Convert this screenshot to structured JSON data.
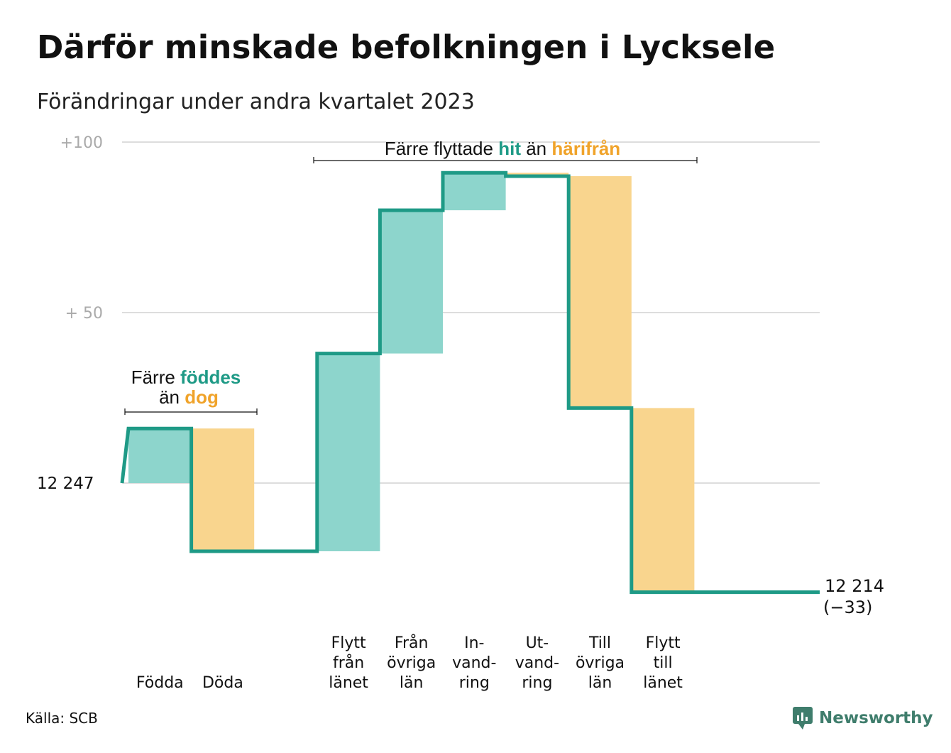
{
  "title": "Därför minskade befolkningen i Lycksele",
  "subtitle": "Förändringar under andra kvartalet 2023",
  "source": "Källa: SCB",
  "brand": "Newsworthy",
  "colors": {
    "in": "#8dd5cc",
    "out": "#f9d58e",
    "line": "#1e9a86",
    "accent_teal": "#1e9a86",
    "accent_orange": "#f0a32a",
    "grid": "#dddddd",
    "axis_text": "#aaaaaa"
  },
  "annotations": {
    "birth": {
      "prefix": "Färre",
      "in_word": "föddes",
      "mid": "än",
      "out_word": "dog"
    },
    "moves": {
      "prefix": "Färre flyttade",
      "in_word": "hit",
      "mid": "än",
      "out_word": "härifrån"
    }
  },
  "chart_data": {
    "type": "waterfall",
    "title": "Därför minskade befolkningen i Lycksele",
    "subtitle": "Förändringar under andra kvartalet 2023",
    "start_value": 12247,
    "end_value": 12214,
    "end_change": -33,
    "y_tick_labels": [
      "+100",
      "+ 50",
      "12  247"
    ],
    "y_ticks": [
      100,
      50,
      0
    ],
    "ylim": [
      -33,
      100
    ],
    "grid": true,
    "start_label": "12  247",
    "end_label": [
      "12 214",
      "(−33)"
    ],
    "steps": [
      {
        "label": [
          "Födda"
        ],
        "change": 16,
        "kind": "in"
      },
      {
        "label": [
          "Döda"
        ],
        "change": -36,
        "kind": "out"
      },
      {
        "label": [],
        "change": 0,
        "kind": "gap"
      },
      {
        "label": [
          "Flytt",
          "från",
          "länet"
        ],
        "change": 58,
        "kind": "in"
      },
      {
        "label": [
          "Från",
          "övriga",
          "län"
        ],
        "change": 42,
        "kind": "in"
      },
      {
        "label": [
          "In-",
          "vand-",
          "ring"
        ],
        "change": 11,
        "kind": "in"
      },
      {
        "label": [
          "Ut-",
          "vand-",
          "ring"
        ],
        "change": -1,
        "kind": "out"
      },
      {
        "label": [
          "Till",
          "övriga",
          "län"
        ],
        "change": -68,
        "kind": "out"
      },
      {
        "label": [
          "Flytt",
          "till",
          "länet"
        ],
        "change": -54,
        "kind": "out"
      }
    ]
  }
}
